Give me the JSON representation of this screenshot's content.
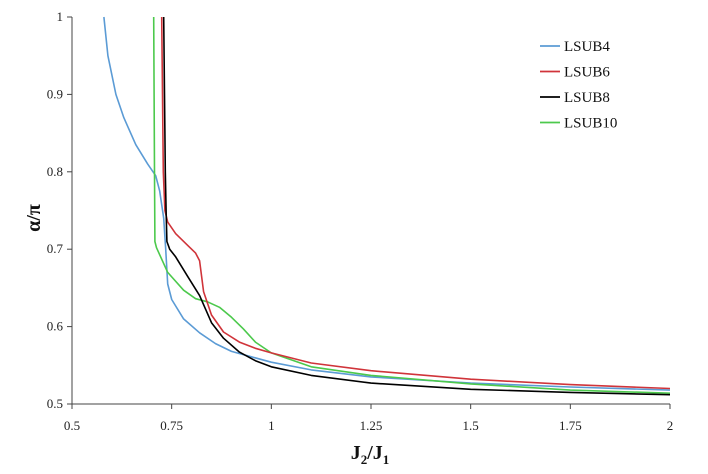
{
  "chart_data": {
    "type": "line",
    "xlabel": "J2/J1",
    "ylabel": "α/π",
    "xlim": [
      0.5,
      2
    ],
    "ylim": [
      0.5,
      1
    ],
    "x_ticks": [
      "0.5",
      "0.75",
      "1",
      "1.25",
      "1.5",
      "1.75",
      "2"
    ],
    "y_ticks": [
      "0.5",
      "0.6",
      "0.7",
      "0.8",
      "0.9",
      "1"
    ],
    "grid": false,
    "legend_position": "top-right",
    "series": [
      {
        "name": "LSUB4",
        "color": "#5b9bd5",
        "points": [
          [
            0.58,
            1.0
          ],
          [
            0.59,
            0.95
          ],
          [
            0.61,
            0.9
          ],
          [
            0.63,
            0.87
          ],
          [
            0.66,
            0.835
          ],
          [
            0.69,
            0.81
          ],
          [
            0.71,
            0.795
          ],
          [
            0.72,
            0.775
          ],
          [
            0.73,
            0.74
          ],
          [
            0.735,
            0.7
          ],
          [
            0.74,
            0.655
          ],
          [
            0.75,
            0.635
          ],
          [
            0.78,
            0.61
          ],
          [
            0.82,
            0.592
          ],
          [
            0.86,
            0.578
          ],
          [
            0.9,
            0.568
          ],
          [
            0.95,
            0.561
          ],
          [
            1.0,
            0.554
          ],
          [
            1.1,
            0.544
          ],
          [
            1.25,
            0.535
          ],
          [
            1.5,
            0.527
          ],
          [
            1.75,
            0.522
          ],
          [
            2.0,
            0.518
          ]
        ]
      },
      {
        "name": "LSUB6",
        "color": "#d0343a",
        "points": [
          [
            0.725,
            1.0
          ],
          [
            0.727,
            0.9
          ],
          [
            0.729,
            0.8
          ],
          [
            0.733,
            0.75
          ],
          [
            0.74,
            0.735
          ],
          [
            0.76,
            0.72
          ],
          [
            0.79,
            0.705
          ],
          [
            0.81,
            0.695
          ],
          [
            0.82,
            0.685
          ],
          [
            0.83,
            0.645
          ],
          [
            0.85,
            0.615
          ],
          [
            0.88,
            0.593
          ],
          [
            0.92,
            0.58
          ],
          [
            0.96,
            0.572
          ],
          [
            1.0,
            0.566
          ],
          [
            1.1,
            0.553
          ],
          [
            1.25,
            0.543
          ],
          [
            1.5,
            0.532
          ],
          [
            1.75,
            0.525
          ],
          [
            2.0,
            0.52
          ]
        ]
      },
      {
        "name": "LSUB8",
        "color": "#000000",
        "points": [
          [
            0.73,
            1.0
          ],
          [
            0.732,
            0.9
          ],
          [
            0.734,
            0.8
          ],
          [
            0.736,
            0.75
          ],
          [
            0.738,
            0.71
          ],
          [
            0.745,
            0.7
          ],
          [
            0.76,
            0.69
          ],
          [
            0.79,
            0.665
          ],
          [
            0.82,
            0.64
          ],
          [
            0.85,
            0.605
          ],
          [
            0.88,
            0.585
          ],
          [
            0.92,
            0.567
          ],
          [
            0.96,
            0.556
          ],
          [
            1.0,
            0.548
          ],
          [
            1.1,
            0.537
          ],
          [
            1.25,
            0.527
          ],
          [
            1.5,
            0.519
          ],
          [
            1.75,
            0.515
          ],
          [
            2.0,
            0.512
          ]
        ]
      },
      {
        "name": "LSUB10",
        "color": "#4cc94c",
        "points": [
          [
            0.705,
            1.0
          ],
          [
            0.706,
            0.9
          ],
          [
            0.707,
            0.8
          ],
          [
            0.708,
            0.71
          ],
          [
            0.712,
            0.702
          ],
          [
            0.74,
            0.67
          ],
          [
            0.78,
            0.647
          ],
          [
            0.81,
            0.636
          ],
          [
            0.84,
            0.632
          ],
          [
            0.87,
            0.625
          ],
          [
            0.9,
            0.612
          ],
          [
            0.93,
            0.597
          ],
          [
            0.96,
            0.58
          ],
          [
            1.0,
            0.566
          ],
          [
            1.1,
            0.548
          ],
          [
            1.25,
            0.537
          ],
          [
            1.5,
            0.526
          ],
          [
            1.75,
            0.518
          ],
          [
            2.0,
            0.514
          ]
        ]
      }
    ]
  }
}
